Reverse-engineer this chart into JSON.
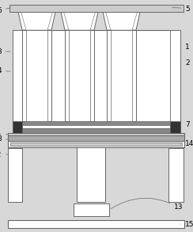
{
  "bg_color": "#d8d8d8",
  "line_color": "#666666",
  "white": "#ffffff",
  "gray_dark": "#888888",
  "gray_med": "#aaaaaa",
  "gray_light": "#cccccc",
  "figsize": [
    2.44,
    2.93
  ],
  "dpi": 100
}
